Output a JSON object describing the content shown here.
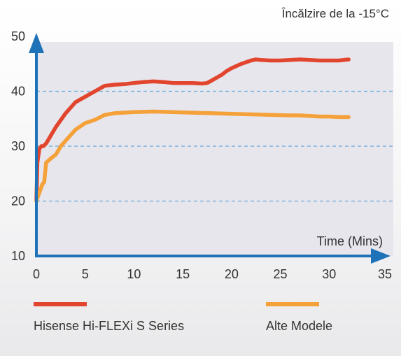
{
  "chart_data": {
    "type": "line",
    "title": "",
    "condition_label": "Încălzire de la -15°C",
    "xlabel": "Time (Mins)",
    "ylabel": "",
    "xlim": [
      0,
      35
    ],
    "ylim": [
      10,
      50
    ],
    "x_ticks": [
      0,
      5,
      10,
      15,
      20,
      25,
      30,
      35
    ],
    "y_ticks": [
      10,
      20,
      30,
      40,
      50
    ],
    "grid_y": [
      20,
      30,
      40
    ],
    "grid_style": "dashed",
    "legend_position": "bottom",
    "colors": {
      "plot_bg": "#e6e6ec",
      "axis": "#1d72b8",
      "grid": "#6aa8dc",
      "series_1": "#e2452e",
      "series_2": "#f5a13a"
    },
    "series": [
      {
        "name": "Hisense Hi-FLEXi S Series",
        "color": "#e2452e",
        "x": [
          0,
          0.1,
          0.3,
          0.5,
          0.7,
          1,
          1.5,
          2,
          3,
          4,
          5,
          6,
          7,
          8,
          9,
          10,
          11,
          12,
          13,
          14,
          15,
          16,
          17,
          17.5,
          18,
          18.5,
          19,
          19.5,
          20,
          21,
          22,
          22.5,
          23,
          24,
          25,
          26,
          27,
          28,
          29,
          30,
          31,
          32
        ],
        "y": [
          20,
          27,
          29.5,
          30,
          30,
          30.5,
          32,
          33.5,
          36,
          38,
          39,
          40,
          41,
          41.2,
          41.3,
          41.5,
          41.7,
          41.8,
          41.7,
          41.5,
          41.5,
          41.5,
          41.4,
          41.5,
          42,
          42.5,
          43,
          43.7,
          44.2,
          45,
          45.6,
          45.8,
          45.7,
          45.6,
          45.6,
          45.7,
          45.8,
          45.7,
          45.6,
          45.6,
          45.6,
          45.8
        ]
      },
      {
        "name": "Alte Modele",
        "color": "#f5a13a",
        "x": [
          0,
          0.2,
          0.4,
          0.6,
          0.8,
          1,
          1.5,
          2,
          2.5,
          3,
          4,
          5,
          6,
          7,
          8,
          10,
          12,
          14,
          16,
          18,
          20,
          22,
          24,
          26,
          27,
          28,
          29,
          30,
          31,
          32
        ],
        "y": [
          20,
          21,
          22,
          23,
          23.5,
          27,
          27.8,
          28.5,
          30,
          31,
          33,
          34.2,
          34.8,
          35.7,
          36,
          36.2,
          36.3,
          36.2,
          36.1,
          36,
          35.9,
          35.8,
          35.7,
          35.6,
          35.6,
          35.5,
          35.4,
          35.4,
          35.3,
          35.3
        ]
      }
    ]
  }
}
